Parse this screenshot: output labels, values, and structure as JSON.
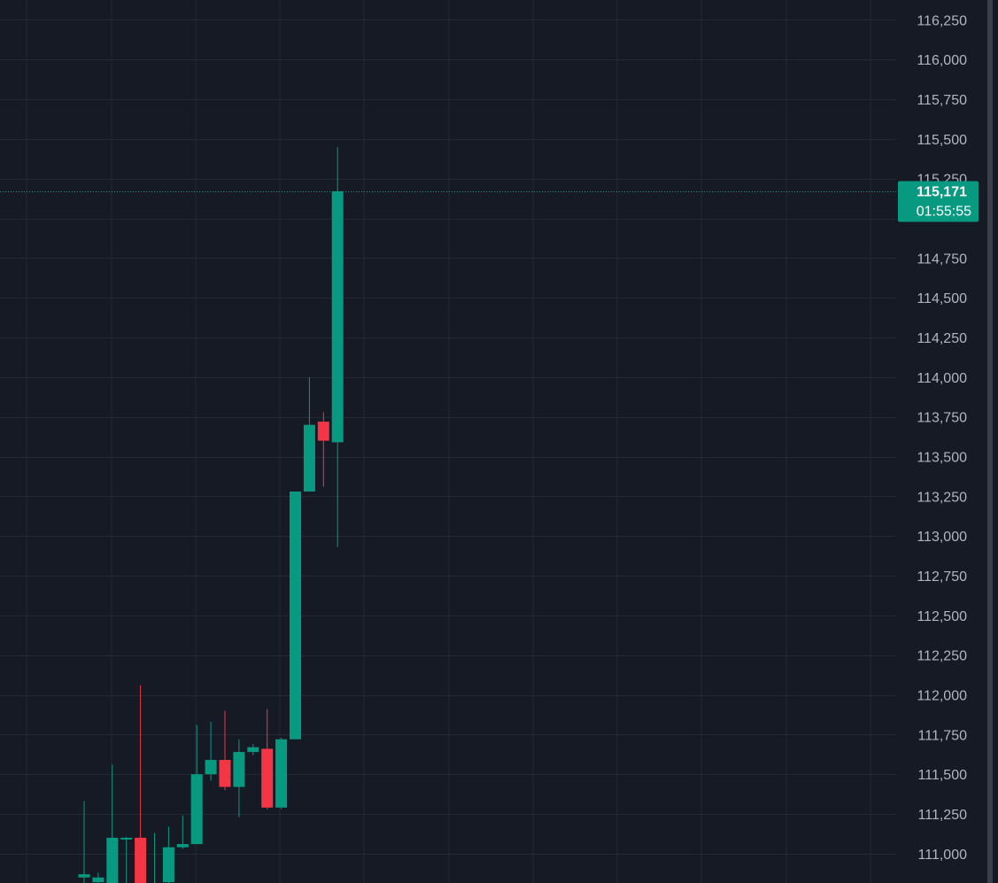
{
  "colors": {
    "background": "#161a25",
    "grid": "#232836",
    "up": "#089981",
    "down": "#f23645",
    "axis_text": "#b2b5be",
    "scrollbar": "#3b3f4b"
  },
  "price_scale": {
    "labels": [
      "116,250",
      "116,000",
      "115,750",
      "115,500",
      "115,250",
      "114,750",
      "114,500",
      "114,250",
      "114,000",
      "113,750",
      "113,500",
      "113,250",
      "113,000",
      "112,750",
      "112,500",
      "112,250",
      "112,000",
      "111,750",
      "111,500",
      "111,250",
      "111,000"
    ]
  },
  "current_price_badge": {
    "price": "115,171",
    "countdown": "01:55:55"
  },
  "chart_data": {
    "type": "candlestick",
    "y_range": [
      110815,
      116375
    ],
    "y_ticks": [
      111000,
      111250,
      111500,
      111750,
      112000,
      112250,
      112500,
      112750,
      113000,
      113250,
      113500,
      113750,
      114000,
      114250,
      114500,
      114750,
      115000,
      115250,
      115500,
      115750,
      116000,
      116250
    ],
    "last_price": 115171,
    "candles": [
      {
        "open": 110850,
        "high": 111330,
        "low": 110800,
        "close": 110870
      },
      {
        "open": 110820,
        "high": 110880,
        "low": 110780,
        "close": 110850
      },
      {
        "open": 110800,
        "high": 111560,
        "low": 110800,
        "close": 111100
      },
      {
        "open": 111100,
        "high": 111105,
        "low": 110800,
        "close": 111100
      },
      {
        "open": 111100,
        "high": 112060,
        "low": 110800,
        "close": 110800
      },
      {
        "open": 110800,
        "high": 111130,
        "low": 110780,
        "close": 110800
      },
      {
        "open": 110820,
        "high": 111170,
        "low": 110800,
        "close": 111040
      },
      {
        "open": 111040,
        "high": 111240,
        "low": 111030,
        "close": 111060
      },
      {
        "open": 111060,
        "high": 111810,
        "low": 111060,
        "close": 111500
      },
      {
        "open": 111500,
        "high": 111830,
        "low": 111460,
        "close": 111590
      },
      {
        "open": 111590,
        "high": 111900,
        "low": 111400,
        "close": 111420
      },
      {
        "open": 111420,
        "high": 111720,
        "low": 111230,
        "close": 111640
      },
      {
        "open": 111640,
        "high": 111690,
        "low": 111620,
        "close": 111670
      },
      {
        "open": 111660,
        "high": 111910,
        "low": 111280,
        "close": 111290
      },
      {
        "open": 111290,
        "high": 111730,
        "low": 111280,
        "close": 111720
      },
      {
        "open": 111720,
        "high": 113280,
        "low": 111720,
        "close": 113280
      },
      {
        "open": 113280,
        "high": 114000,
        "low": 113280,
        "close": 113700
      },
      {
        "open": 113720,
        "high": 113780,
        "low": 113310,
        "close": 113600
      },
      {
        "open": 113590,
        "high": 115450,
        "low": 112930,
        "close": 115171
      }
    ]
  }
}
